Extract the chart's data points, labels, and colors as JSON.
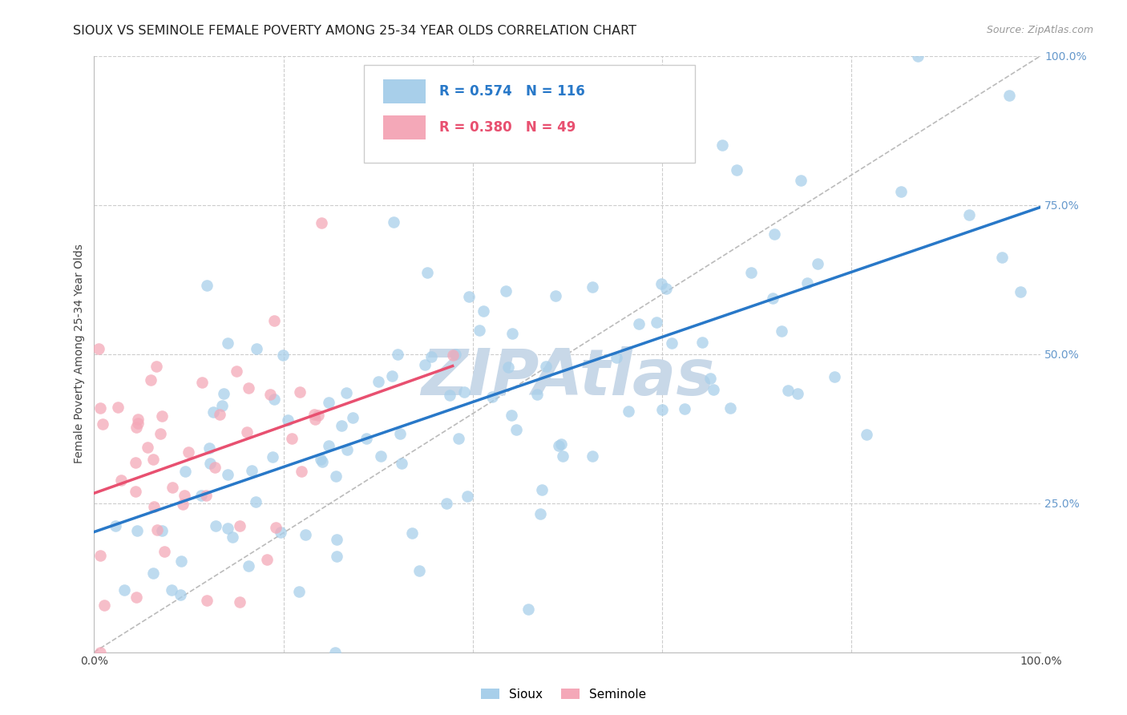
{
  "title": "SIOUX VS SEMINOLE FEMALE POVERTY AMONG 25-34 YEAR OLDS CORRELATION CHART",
  "source": "Source: ZipAtlas.com",
  "ylabel": "Female Poverty Among 25-34 Year Olds",
  "xlim": [
    0,
    1
  ],
  "ylim": [
    0,
    1
  ],
  "xticks": [
    0.0,
    0.2,
    0.4,
    0.6,
    0.8,
    1.0
  ],
  "yticks": [
    0.0,
    0.25,
    0.5,
    0.75,
    1.0
  ],
  "xticklabels": [
    "0.0%",
    "",
    "",
    "",
    "",
    "100.0%"
  ],
  "yticklabels": [
    "",
    "25.0%",
    "50.0%",
    "75.0%",
    "100.0%"
  ],
  "sioux_R": 0.574,
  "sioux_N": 116,
  "seminole_R": 0.38,
  "seminole_N": 49,
  "sioux_color": "#A8CFEA",
  "seminole_color": "#F4A8B8",
  "sioux_line_color": "#2878C8",
  "seminole_line_color": "#E85070",
  "diagonal_color": "#BBBBBB",
  "watermark": "ZIPAtlas",
  "watermark_color": "#C8D8E8",
  "background_color": "#FFFFFF",
  "grid_color": "#CCCCCC",
  "title_fontsize": 11.5,
  "axis_label_fontsize": 10,
  "tick_fontsize": 10,
  "legend_fontsize": 12,
  "right_tick_color": "#6699CC",
  "sioux_seed": 42,
  "seminole_seed": 7
}
